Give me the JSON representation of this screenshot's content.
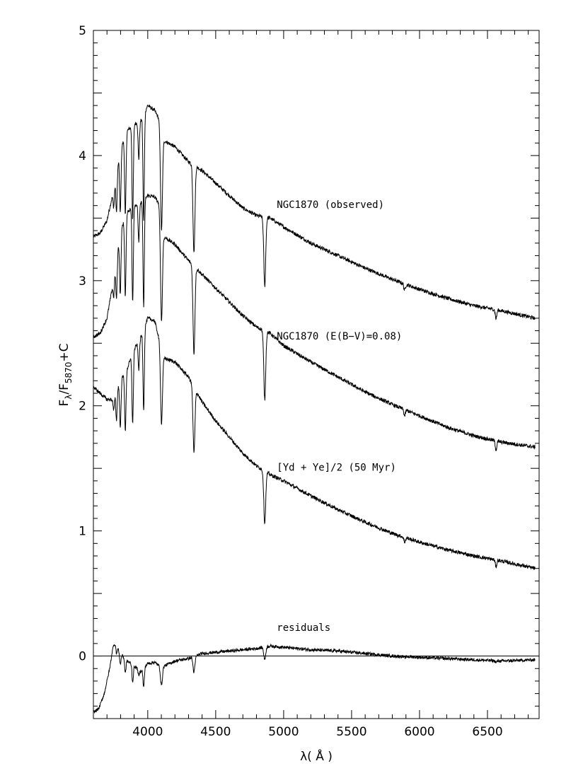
{
  "chart_data": {
    "type": "line",
    "xlabel": {
      "prefix": "λ(",
      "unit": " Å ",
      "suffix": ")"
    },
    "ylabel": {
      "F": "F",
      "lambda_sub": "λ",
      "slash": "/F",
      "ref_sub": "5870",
      "plus_c": "+C"
    },
    "xlim": [
      3600,
      6880
    ],
    "ylim": [
      -0.5,
      5.0
    ],
    "x_ticks": [
      {
        "value": 4000,
        "label": "4000"
      },
      {
        "value": 4500,
        "label": "4500"
      },
      {
        "value": 5000,
        "label": "5000"
      },
      {
        "value": 5500,
        "label": "5500"
      },
      {
        "value": 6000,
        "label": "6000"
      },
      {
        "value": 6500,
        "label": "6500"
      }
    ],
    "y_ticks": [
      {
        "value": 0,
        "label": "0"
      },
      {
        "value": 1,
        "label": "1"
      },
      {
        "value": 2,
        "label": "2"
      },
      {
        "value": 3,
        "label": "3"
      },
      {
        "value": 4,
        "label": "4"
      },
      {
        "value": 5,
        "label": "5"
      }
    ],
    "grid": false,
    "zero_line": 0,
    "absorption_lines": [
      {
        "lambda": 3750,
        "depth": 0.15
      },
      {
        "lambda": 3770,
        "depth": 0.32
      },
      {
        "lambda": 3798,
        "depth": 0.5
      },
      {
        "lambda": 3835,
        "depth": 0.64
      },
      {
        "lambda": 3889,
        "depth": 0.75
      },
      {
        "lambda": 3934,
        "depth": 0.3
      },
      {
        "lambda": 3970,
        "depth": 0.85
      },
      {
        "lambda": 4101,
        "depth": 0.8
      },
      {
        "lambda": 4340,
        "depth": 0.7
      },
      {
        "lambda": 4861,
        "depth": 0.55
      },
      {
        "lambda": 5890,
        "depth": 0.05
      },
      {
        "lambda": 6563,
        "depth": 0.07
      }
    ],
    "series": [
      {
        "name": "NGC1870 (observed)",
        "label_at": [
          4950,
          3.58
        ],
        "points": [
          [
            3600,
            3.35
          ],
          [
            3650,
            3.38
          ],
          [
            3700,
            3.48
          ],
          [
            3740,
            3.68
          ],
          [
            3800,
            4.05
          ],
          [
            3850,
            4.2
          ],
          [
            3900,
            4.25
          ],
          [
            3950,
            4.28
          ],
          [
            4000,
            4.4
          ],
          [
            4050,
            4.36
          ],
          [
            4080,
            4.3
          ],
          [
            4120,
            4.12
          ],
          [
            4200,
            4.07
          ],
          [
            4300,
            3.95
          ],
          [
            4400,
            3.88
          ],
          [
            4500,
            3.78
          ],
          [
            4600,
            3.68
          ],
          [
            4700,
            3.58
          ],
          [
            4800,
            3.52
          ],
          [
            4900,
            3.5
          ],
          [
            5000,
            3.43
          ],
          [
            5200,
            3.3
          ],
          [
            5400,
            3.2
          ],
          [
            5600,
            3.1
          ],
          [
            5800,
            3.01
          ],
          [
            6000,
            2.93
          ],
          [
            6200,
            2.86
          ],
          [
            6400,
            2.8
          ],
          [
            6600,
            2.76
          ],
          [
            6850,
            2.7
          ]
        ]
      },
      {
        "name": "NGC1870 (E(B−V)=0.08)",
        "label_at": [
          4950,
          2.53
        ],
        "points": [
          [
            3600,
            2.55
          ],
          [
            3650,
            2.58
          ],
          [
            3700,
            2.7
          ],
          [
            3740,
            2.95
          ],
          [
            3800,
            3.4
          ],
          [
            3850,
            3.55
          ],
          [
            3900,
            3.6
          ],
          [
            3950,
            3.62
          ],
          [
            4000,
            3.68
          ],
          [
            4050,
            3.67
          ],
          [
            4080,
            3.62
          ],
          [
            4120,
            3.35
          ],
          [
            4200,
            3.29
          ],
          [
            4300,
            3.16
          ],
          [
            4400,
            3.05
          ],
          [
            4500,
            2.94
          ],
          [
            4600,
            2.83
          ],
          [
            4700,
            2.72
          ],
          [
            4800,
            2.63
          ],
          [
            4900,
            2.58
          ],
          [
            5000,
            2.48
          ],
          [
            5200,
            2.35
          ],
          [
            5400,
            2.23
          ],
          [
            5600,
            2.11
          ],
          [
            5800,
            2.01
          ],
          [
            6000,
            1.92
          ],
          [
            6200,
            1.83
          ],
          [
            6400,
            1.76
          ],
          [
            6600,
            1.71
          ],
          [
            6850,
            1.67
          ]
        ]
      },
      {
        "name": "[Yd + Ye]/2 (50 Myr)",
        "label_at": [
          4950,
          1.48
        ],
        "points": [
          [
            3600,
            2.15
          ],
          [
            3650,
            2.1
          ],
          [
            3700,
            2.05
          ],
          [
            3740,
            2.05
          ],
          [
            3800,
            2.2
          ],
          [
            3850,
            2.3
          ],
          [
            3900,
            2.45
          ],
          [
            3950,
            2.55
          ],
          [
            4000,
            2.7
          ],
          [
            4050,
            2.68
          ],
          [
            4080,
            2.55
          ],
          [
            4120,
            2.38
          ],
          [
            4200,
            2.35
          ],
          [
            4300,
            2.23
          ],
          [
            4400,
            2.03
          ],
          [
            4500,
            1.88
          ],
          [
            4600,
            1.75
          ],
          [
            4700,
            1.62
          ],
          [
            4800,
            1.52
          ],
          [
            4900,
            1.45
          ],
          [
            5000,
            1.4
          ],
          [
            5200,
            1.28
          ],
          [
            5400,
            1.17
          ],
          [
            5600,
            1.07
          ],
          [
            5800,
            0.98
          ],
          [
            6000,
            0.91
          ],
          [
            6200,
            0.85
          ],
          [
            6400,
            0.8
          ],
          [
            6600,
            0.76
          ],
          [
            6850,
            0.7
          ]
        ]
      },
      {
        "name": "residuals",
        "label_at": [
          4950,
          0.2
        ],
        "points": [
          [
            3600,
            -0.45
          ],
          [
            3640,
            -0.42
          ],
          [
            3680,
            -0.3
          ],
          [
            3720,
            -0.1
          ],
          [
            3750,
            0.12
          ],
          [
            3800,
            0.02
          ],
          [
            3850,
            -0.04
          ],
          [
            3900,
            -0.08
          ],
          [
            3950,
            -0.12
          ],
          [
            4000,
            -0.06
          ],
          [
            4050,
            -0.05
          ],
          [
            4100,
            -0.09
          ],
          [
            4200,
            -0.04
          ],
          [
            4300,
            -0.02
          ],
          [
            4400,
            0.02
          ],
          [
            4500,
            0.03
          ],
          [
            4600,
            0.04
          ],
          [
            4700,
            0.05
          ],
          [
            4800,
            0.06
          ],
          [
            4900,
            0.08
          ],
          [
            5000,
            0.07
          ],
          [
            5200,
            0.05
          ],
          [
            5400,
            0.04
          ],
          [
            5600,
            0.02
          ],
          [
            5800,
            0.0
          ],
          [
            6000,
            -0.01
          ],
          [
            6200,
            -0.02
          ],
          [
            6400,
            -0.03
          ],
          [
            6600,
            -0.04
          ],
          [
            6850,
            -0.03
          ]
        ]
      }
    ]
  }
}
